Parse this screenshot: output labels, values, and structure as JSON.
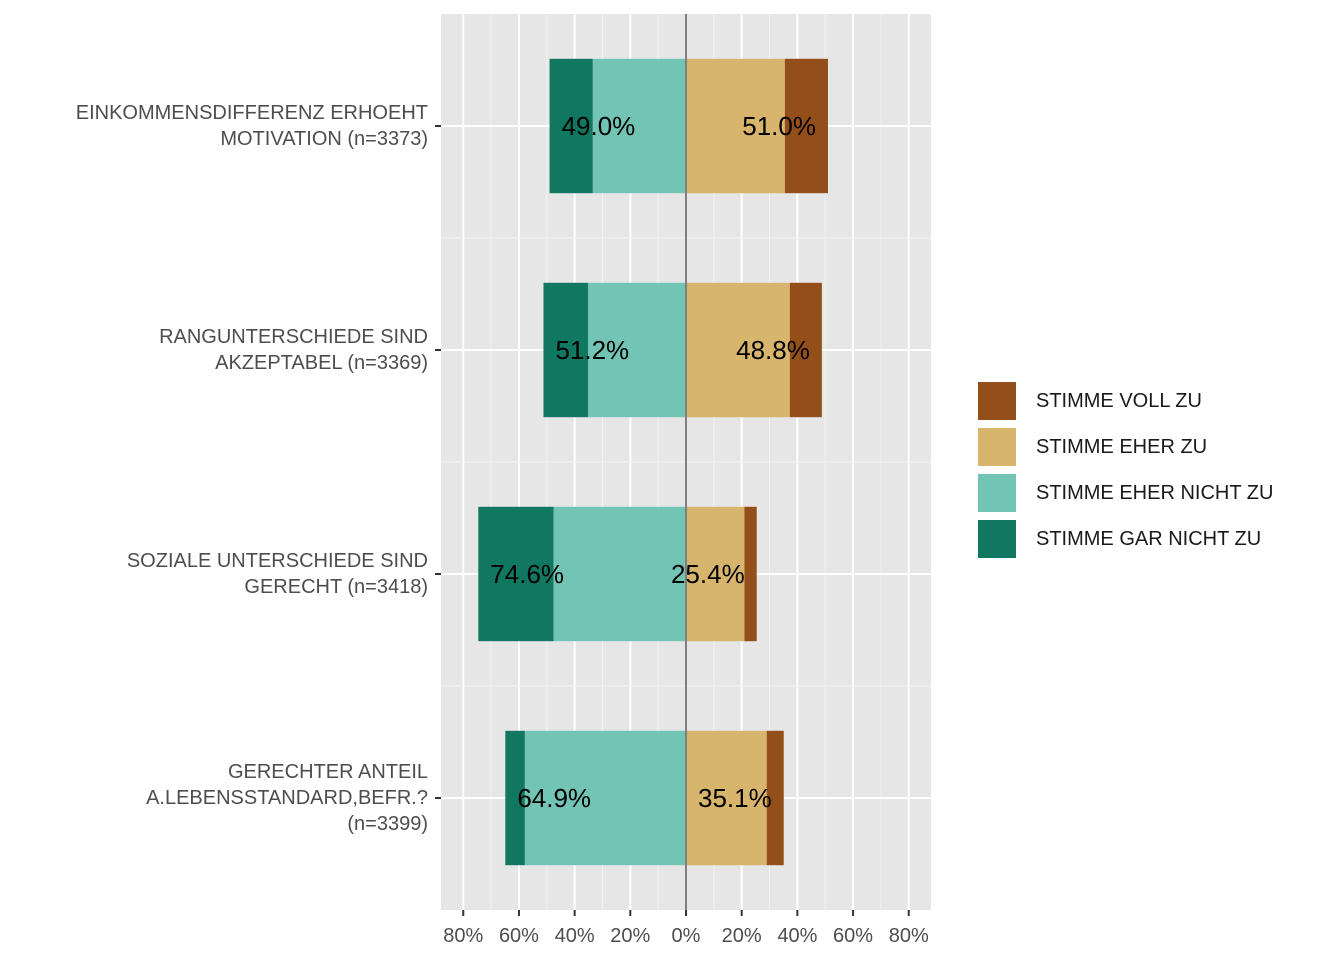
{
  "chart_data": {
    "type": "bar",
    "orientation": "horizontal-diverging",
    "categories": [
      "EINKOMMENSDIFFERENZ ERHOEHT\nMOTIVATION (n=3373)",
      "RANGUNTERSCHIEDE SIND\nAKZEPTABEL (n=3369)",
      "SOZIALE UNTERSCHIEDE SIND\nGERECHT (n=3418)",
      "GERECHTER ANTEIL\nA.LEBENSSTANDARD,BEFR.?\n(n=3399)"
    ],
    "series": [
      {
        "name": "STIMME GAR NICHT ZU",
        "color": "#107761",
        "side": "negative",
        "values": [
          15.5,
          16.0,
          27.0,
          7.0
        ]
      },
      {
        "name": "STIMME EHER NICHT ZU",
        "color": "#72c4b4",
        "side": "negative",
        "values": [
          33.5,
          35.2,
          47.6,
          57.9
        ]
      },
      {
        "name": "STIMME EHER ZU",
        "color": "#d8b56c",
        "side": "positive",
        "values": [
          35.5,
          37.3,
          21.0,
          29.0
        ]
      },
      {
        "name": "STIMME VOLL ZU",
        "color": "#944e19",
        "side": "positive",
        "values": [
          15.5,
          11.5,
          4.4,
          6.1
        ]
      }
    ],
    "totals_negative": [
      "49.0%",
      "51.2%",
      "74.6%",
      "64.9%"
    ],
    "totals_positive": [
      "51.0%",
      "48.8%",
      "25.4%",
      "35.1%"
    ],
    "xlim": [
      -88,
      88
    ],
    "x_ticks": [
      -80,
      -60,
      -40,
      -20,
      0,
      20,
      40,
      60,
      80
    ],
    "x_tick_labels": [
      "80%",
      "60%",
      "40%",
      "20%",
      "0%",
      "20%",
      "40%",
      "60%",
      "80%"
    ],
    "legend_order": [
      "STIMME VOLL ZU",
      "STIMME EHER ZU",
      "STIMME EHER NICHT ZU",
      "STIMME GAR NICHT ZU"
    ],
    "legend_position": "right",
    "grid": true
  }
}
